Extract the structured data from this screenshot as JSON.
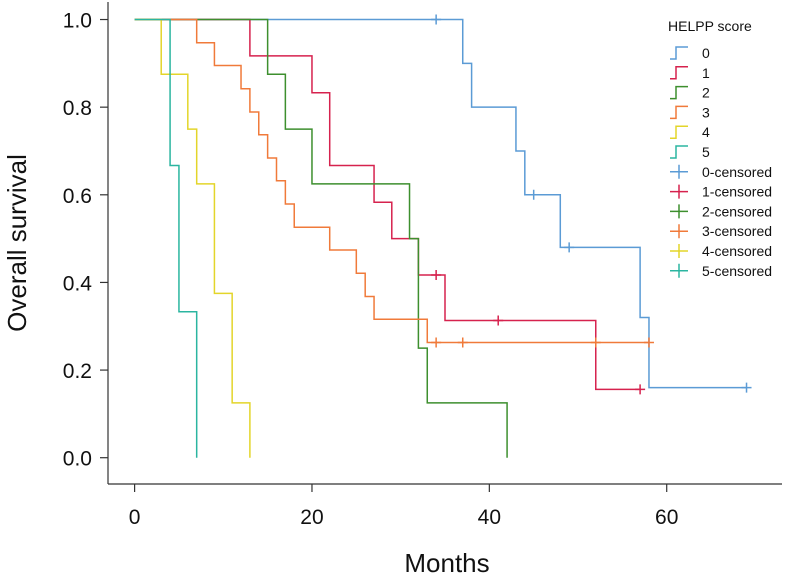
{
  "chart_data": {
    "type": "line",
    "subtype": "kaplan-meier step",
    "title": "",
    "xlabel": "Months",
    "ylabel": "Overall survival",
    "xlim": [
      -3,
      73
    ],
    "ylim": [
      -0.06,
      1.04
    ],
    "x_ticks": [
      0,
      20,
      40,
      60
    ],
    "y_ticks": [
      0.0,
      0.2,
      0.4,
      0.6,
      0.8,
      1.0
    ],
    "y_tick_labels": [
      "0.0",
      "0.2",
      "0.4",
      "0.6",
      "0.8",
      "1.0"
    ],
    "grid": false,
    "legend_title": "HELPP score",
    "legend_position": "top-right",
    "series": [
      {
        "name": "0",
        "censored_label": "0-censored",
        "color": "#5b9bd5",
        "steps": [
          [
            0,
            1.0
          ],
          [
            37,
            0.9
          ],
          [
            38,
            0.8
          ],
          [
            43,
            0.7
          ],
          [
            44,
            0.6
          ],
          [
            48,
            0.48
          ],
          [
            57,
            0.32
          ],
          [
            58,
            0.16
          ],
          [
            69,
            0.16
          ]
        ],
        "censored": [
          [
            34,
            1.0
          ],
          [
            45,
            0.6
          ],
          [
            49,
            0.48
          ],
          [
            69,
            0.16
          ]
        ]
      },
      {
        "name": "1",
        "censored_label": "1-censored",
        "color": "#d6224e",
        "steps": [
          [
            0,
            1.0
          ],
          [
            13,
            0.917
          ],
          [
            20,
            0.833
          ],
          [
            22,
            0.667
          ],
          [
            27,
            0.583
          ],
          [
            29,
            0.5
          ],
          [
            32,
            0.417
          ],
          [
            35,
            0.313
          ],
          [
            52,
            0.156
          ],
          [
            57,
            0.156
          ]
        ],
        "censored": [
          [
            34,
            0.417
          ],
          [
            41,
            0.313
          ],
          [
            57,
            0.156
          ]
        ]
      },
      {
        "name": "2",
        "censored_label": "2-censored",
        "color": "#3d8f2e",
        "steps": [
          [
            0,
            1.0
          ],
          [
            15,
            0.875
          ],
          [
            17,
            0.75
          ],
          [
            20,
            0.625
          ],
          [
            31,
            0.5
          ],
          [
            32,
            0.25
          ],
          [
            33,
            0.125
          ],
          [
            42,
            0.125
          ],
          [
            42,
            0.0
          ]
        ],
        "censored": []
      },
      {
        "name": "3",
        "censored_label": "3-censored",
        "color": "#f07a3a",
        "steps": [
          [
            0,
            1.0
          ],
          [
            7,
            0.947
          ],
          [
            9,
            0.895
          ],
          [
            12,
            0.842
          ],
          [
            13,
            0.789
          ],
          [
            14,
            0.737
          ],
          [
            15,
            0.684
          ],
          [
            16,
            0.632
          ],
          [
            17,
            0.579
          ],
          [
            18,
            0.526
          ],
          [
            22,
            0.474
          ],
          [
            25,
            0.421
          ],
          [
            26,
            0.368
          ],
          [
            27,
            0.316
          ],
          [
            33,
            0.263
          ],
          [
            58,
            0.263
          ]
        ],
        "censored": [
          [
            34,
            0.263
          ],
          [
            37,
            0.263
          ],
          [
            52,
            0.263
          ],
          [
            58,
            0.263
          ]
        ]
      },
      {
        "name": "4",
        "censored_label": "4-censored",
        "color": "#e3d52a",
        "steps": [
          [
            0,
            1.0
          ],
          [
            3,
            0.875
          ],
          [
            6,
            0.75
          ],
          [
            7,
            0.625
          ],
          [
            9,
            0.375
          ],
          [
            11,
            0.125
          ],
          [
            13,
            0.125
          ],
          [
            13,
            0.0
          ]
        ],
        "censored": []
      },
      {
        "name": "5",
        "censored_label": "5-censored",
        "color": "#2bb5a0",
        "steps": [
          [
            0,
            1.0
          ],
          [
            4,
            0.667
          ],
          [
            5,
            0.333
          ],
          [
            7,
            0.333
          ],
          [
            7,
            0.0
          ]
        ],
        "censored": []
      }
    ]
  }
}
